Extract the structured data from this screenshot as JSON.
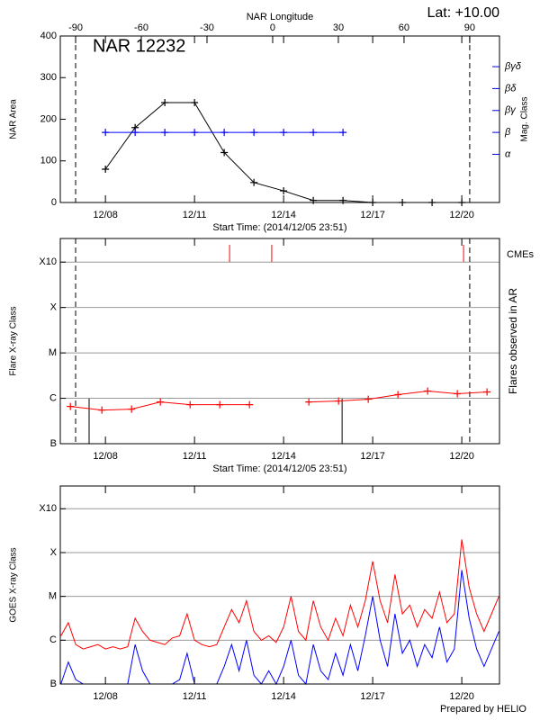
{
  "chart_data": [
    {
      "type": "line",
      "title": "NAR 12232",
      "annotation": "Lat: +10.00",
      "xlabel": "Start Time: (2014/12/05 23:51)",
      "ylabel": "NAR Area",
      "y2label": "Mag. Class",
      "x2label": "NAR Longitude",
      "xlim": [
        6.48,
        21.27
      ],
      "xticks": [
        {
          "value": 8,
          "label": "12/08"
        },
        {
          "value": 11,
          "label": "12/11"
        },
        {
          "value": 14,
          "label": "12/14"
        },
        {
          "value": 17,
          "label": "12/17"
        },
        {
          "value": 20,
          "label": "12/20"
        }
      ],
      "x2lim": [
        -97,
        103.6
      ],
      "x2ticks": [
        -90,
        -60,
        -30,
        0,
        30,
        60,
        90
      ],
      "vlines_x2": [
        -90,
        90
      ],
      "ylim": [
        0,
        400
      ],
      "yticks": [
        0,
        100,
        200,
        300,
        400
      ],
      "y2lim": [
        0.8,
        8.4
      ],
      "y2ticks": [
        {
          "value": 3,
          "label": "α"
        },
        {
          "value": 4,
          "label": "β"
        },
        {
          "value": 5,
          "label": "βγ"
        },
        {
          "value": 6,
          "label": "βδ"
        },
        {
          "value": 7,
          "label": "βγδ"
        }
      ],
      "series": [
        {
          "color": "#000000",
          "marker": "+",
          "x": [
            8,
            9,
            10,
            11,
            12,
            13,
            14,
            15,
            16,
            17,
            18,
            19,
            20
          ],
          "values": [
            80,
            180,
            240,
            240,
            120,
            48,
            28,
            5,
            5,
            0,
            0,
            0,
            0
          ]
        },
        {
          "color": "#0000ff",
          "marker": "+",
          "axis": "y2",
          "x": [
            8,
            9,
            10,
            11,
            12,
            13,
            14,
            15,
            16
          ],
          "values": [
            4,
            4,
            4,
            4,
            4,
            4,
            4,
            4,
            4
          ]
        }
      ]
    },
    {
      "type": "line",
      "xlabel": "Start Time: (2014/12/05 23:51)",
      "ylabel": "Flare X-ray Class",
      "y2label": "Flares observed in AR",
      "event_label": "CMEs",
      "event_color": "#ff0000",
      "events_x": [
        12.18,
        13.6,
        20.06
      ],
      "ar_flares_x": [
        7.45,
        15.97
      ],
      "xlim": [
        6.48,
        21.27
      ],
      "xticks": [
        {
          "value": 8,
          "label": "12/08"
        },
        {
          "value": 11,
          "label": "12/11"
        },
        {
          "value": 14,
          "label": "12/14"
        },
        {
          "value": 17,
          "label": "12/17"
        },
        {
          "value": 20,
          "label": "12/20"
        }
      ],
      "x2lim": [
        -97,
        103.6
      ],
      "vlines_x2": [
        -90,
        90
      ],
      "ylim": [
        0,
        4.52
      ],
      "yticks": [
        {
          "value": 0,
          "label": "B"
        },
        {
          "value": 1,
          "label": "C"
        },
        {
          "value": 2,
          "label": "M"
        },
        {
          "value": 3,
          "label": "X"
        },
        {
          "value": 4,
          "label": "X10"
        }
      ],
      "grid": true,
      "series": [
        {
          "color": "#ff0000",
          "marker": "+",
          "x": [
            6.82,
            7.88,
            8.88,
            9.85,
            10.85,
            11.85,
            12.85,
            13.85,
            14.85,
            15.85,
            16.85,
            17.85,
            18.85,
            19.85,
            20.85
          ],
          "values": [
            0.82,
            0.74,
            0.76,
            0.92,
            0.86,
            0.86,
            0.86,
            null,
            0.92,
            0.94,
            0.98,
            1.08,
            1.16,
            1.1,
            1.14
          ]
        }
      ]
    },
    {
      "type": "line",
      "ylabel": "GOES X-ray Class",
      "xlim": [
        6.48,
        21.27
      ],
      "xticks": [
        {
          "value": 8,
          "label": "12/08"
        },
        {
          "value": 11,
          "label": "12/11"
        },
        {
          "value": 14,
          "label": "12/14"
        },
        {
          "value": 17,
          "label": "12/17"
        },
        {
          "value": 20,
          "label": "12/20"
        }
      ],
      "ylim": [
        0,
        4.52
      ],
      "yticks": [
        {
          "value": 0,
          "label": "B"
        },
        {
          "value": 1,
          "label": "C"
        },
        {
          "value": 2,
          "label": "M"
        },
        {
          "value": 3,
          "label": "X"
        },
        {
          "value": 4,
          "label": "X10"
        }
      ],
      "grid": true,
      "series": [
        {
          "color": "#ff0000",
          "x": [
            6.5,
            6.75,
            7,
            7.25,
            7.5,
            7.75,
            8,
            8.25,
            8.5,
            8.75,
            9,
            9.25,
            9.5,
            9.75,
            10,
            10.25,
            10.5,
            10.75,
            11,
            11.25,
            11.5,
            11.75,
            12,
            12.25,
            12.5,
            12.75,
            13,
            13.25,
            13.5,
            13.75,
            14,
            14.25,
            14.5,
            14.75,
            15,
            15.25,
            15.5,
            15.75,
            16,
            16.25,
            16.5,
            16.75,
            17,
            17.25,
            17.5,
            17.75,
            18,
            18.25,
            18.5,
            18.75,
            19,
            19.25,
            19.5,
            19.75,
            20,
            20.25,
            20.5,
            20.75,
            21,
            21.25
          ],
          "values": [
            1.1,
            1.4,
            0.9,
            0.8,
            0.85,
            0.9,
            0.8,
            0.85,
            0.8,
            0.85,
            1.5,
            1.2,
            1.0,
            0.95,
            0.9,
            1.05,
            1.1,
            1.6,
            1.0,
            0.9,
            0.85,
            0.9,
            1.3,
            1.7,
            1.4,
            1.9,
            1.2,
            1.0,
            1.1,
            0.95,
            1.3,
            2.0,
            1.2,
            1.0,
            1.9,
            1.3,
            1.0,
            1.5,
            1.1,
            1.8,
            1.3,
            1.9,
            2.8,
            1.9,
            1.4,
            2.5,
            1.6,
            1.8,
            1.3,
            1.7,
            1.5,
            2.1,
            1.4,
            1.6,
            3.3,
            2.2,
            1.6,
            1.2,
            1.6,
            2.0
          ]
        },
        {
          "color": "#0000ff",
          "x": [
            6.5,
            6.75,
            7,
            7.25,
            7.5,
            7.75,
            8,
            8.25,
            8.5,
            8.75,
            9,
            9.25,
            9.5,
            9.75,
            10,
            10.25,
            10.5,
            10.75,
            11,
            11.25,
            11.5,
            11.75,
            12,
            12.25,
            12.5,
            12.75,
            13,
            13.25,
            13.5,
            13.75,
            14,
            14.25,
            14.5,
            14.75,
            15,
            15.25,
            15.5,
            15.75,
            16,
            16.25,
            16.5,
            16.75,
            17,
            17.25,
            17.5,
            17.75,
            18,
            18.25,
            18.5,
            18.75,
            19,
            19.25,
            19.5,
            19.75,
            20,
            20.25,
            20.5,
            20.75,
            21,
            21.25
          ],
          "values": [
            0,
            0.5,
            0.1,
            0,
            0,
            0,
            0,
            0,
            0,
            0,
            0.9,
            0.3,
            0,
            0,
            0,
            0,
            0.1,
            0.7,
            0,
            0,
            0,
            0,
            0.4,
            0.9,
            0.3,
            1.0,
            0.2,
            0,
            0.3,
            0,
            0.4,
            1.0,
            0.2,
            0,
            0.9,
            0.3,
            0.1,
            0.7,
            0.2,
            0.9,
            0.3,
            1.1,
            2.0,
            1.0,
            0.4,
            1.6,
            0.7,
            1.0,
            0.4,
            0.9,
            0.6,
            1.3,
            0.5,
            0.8,
            2.6,
            1.5,
            0.8,
            0.4,
            0.8,
            1.2
          ]
        }
      ]
    }
  ],
  "footer": "Prepared by HELIO"
}
